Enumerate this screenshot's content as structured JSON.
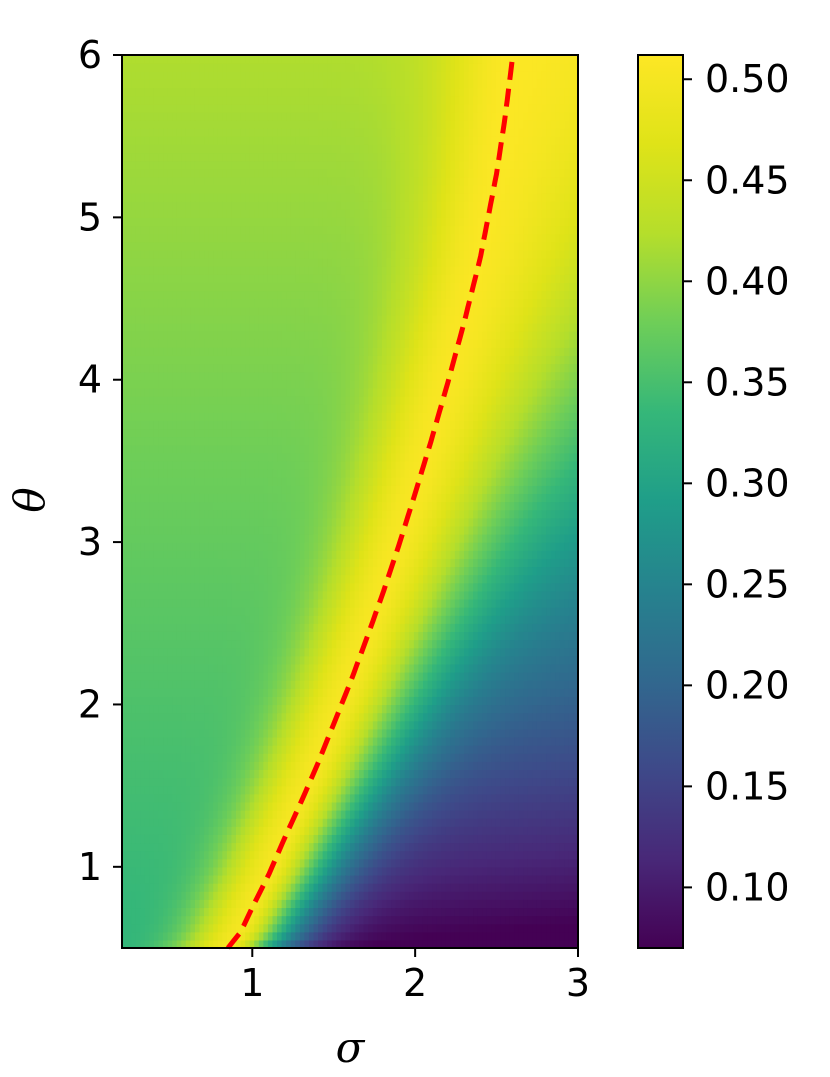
{
  "chart_data": {
    "type": "heatmap",
    "title": "",
    "xlabel": "σ",
    "ylabel": "θ",
    "xlim": [
      0.2,
      3.0
    ],
    "ylim": [
      0.5,
      6.0
    ],
    "x_ticks": [
      1,
      2,
      3
    ],
    "y_ticks": [
      1,
      2,
      3,
      4,
      5,
      6
    ],
    "colormap": "viridis",
    "color_range": [
      0.07,
      0.512
    ],
    "colorbar_ticks": [
      "0.10",
      "0.15",
      "0.20",
      "0.25",
      "0.30",
      "0.35",
      "0.40",
      "0.45",
      "0.50"
    ],
    "z_samples": [
      {
        "sigma": 0.2,
        "theta": 0.5,
        "z": 0.33
      },
      {
        "sigma": 0.85,
        "theta": 0.5,
        "z": 0.5
      },
      {
        "sigma": 3.0,
        "theta": 0.5,
        "z": 0.07
      },
      {
        "sigma": 0.2,
        "theta": 3.0,
        "z": 0.39
      },
      {
        "sigma": 1.65,
        "theta": 3.0,
        "z": 0.51
      },
      {
        "sigma": 3.0,
        "theta": 3.0,
        "z": 0.33
      },
      {
        "sigma": 0.2,
        "theta": 6.0,
        "z": 0.42
      },
      {
        "sigma": 2.55,
        "theta": 6.0,
        "z": 0.51
      },
      {
        "sigma": 3.0,
        "theta": 6.0,
        "z": 0.48
      }
    ],
    "optimal_curve": {
      "color": "#ff0000",
      "style": "dashed",
      "x": [
        0.85,
        0.93,
        1.0,
        1.1,
        1.2,
        1.3,
        1.4,
        1.5,
        1.6,
        1.7,
        1.8,
        1.9,
        2.0,
        2.1,
        2.2,
        2.3,
        2.4,
        2.5,
        2.55,
        2.6
      ],
      "y": [
        0.5,
        0.6,
        0.75,
        0.95,
        1.18,
        1.4,
        1.63,
        1.88,
        2.13,
        2.4,
        2.68,
        2.98,
        3.3,
        3.63,
        3.98,
        4.35,
        4.75,
        5.27,
        5.6,
        6.0
      ]
    }
  }
}
